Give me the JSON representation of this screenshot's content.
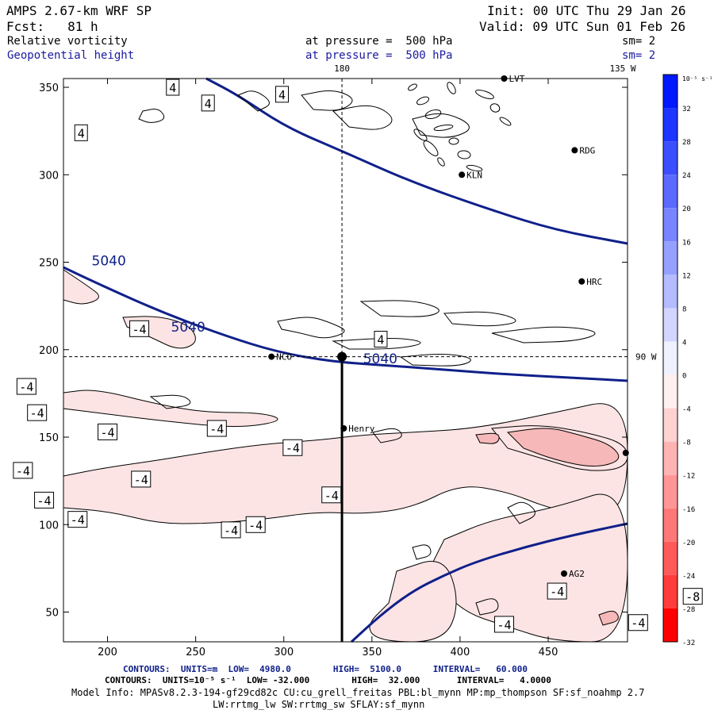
{
  "header": {
    "model": "AMPS 2.67-km WRF SP",
    "forecast": "Fcst:   81 h",
    "init": "Init: 00 UTC Thu 29 Jan 26",
    "valid": "Valid: 09 UTC Sun 01 Feb 26",
    "field1": "Relative vorticity",
    "field1_level": "at pressure =  500 hPa",
    "field1_sm": "sm= 2",
    "field2": "Geopotential height",
    "field2_level": "at pressure =  500 hPa",
    "field2_sm": "sm= 2"
  },
  "footer": {
    "contours1": "CONTOURS:  UNITS=m  LOW=  4980.0        HIGH=  5100.0      INTERVAL=   60.000",
    "contours2": "CONTOURS:  UNITS=10⁻⁵ s⁻¹  LOW= -32.000        HIGH=  32.000       INTERVAL=   4.0000",
    "model_info": "Model Info: MPASv8.2.3-194-gf29cd82c CU:cu_grell_freitas PBL:bl_mynn MP:mp_thompson SF:sf_noahmp 2.7",
    "model_info2": "LW:rrtmg_lw SW:rrtmg_sw SFLAY:sf_mynn"
  },
  "colors": {
    "height_contour": "#10208a",
    "vort_fill_neg": "#fde4e4",
    "vort_fill_neg2": "#f6b8b8",
    "frame": "#000000"
  },
  "chart_data": {
    "type": "contour map",
    "xlim": [
      175,
      495
    ],
    "ylim": [
      33,
      355
    ],
    "x_ticks": [
      200,
      250,
      300,
      350,
      400,
      450
    ],
    "y_ticks": [
      50,
      100,
      150,
      200,
      250,
      300,
      350
    ],
    "top_label_180": "180",
    "top_label_135w": "135 W",
    "right_label_90w": "90 W",
    "colorbar": {
      "unit_label": "10⁻⁵ s⁻¹",
      "levels": [
        32,
        28,
        24,
        20,
        16,
        12,
        8,
        4,
        0,
        -4,
        -8,
        -12,
        -16,
        -20,
        -24,
        -28,
        -32
      ]
    },
    "height_contours": [
      {
        "label": "5040",
        "label_pos": [
          191,
          251
        ]
      },
      {
        "label": "5040",
        "label_pos": [
          236,
          213
        ]
      },
      {
        "label": "5040",
        "label_pos": [
          345,
          195
        ]
      }
    ],
    "vorticity_labels": [
      {
        "text": "4",
        "x": 237,
        "y": 350
      },
      {
        "text": "4",
        "x": 257,
        "y": 341
      },
      {
        "text": "4",
        "x": 185,
        "y": 324
      },
      {
        "text": "4",
        "x": 299,
        "y": 346
      },
      {
        "text": "-4",
        "x": 218,
        "y": 212
      },
      {
        "text": "4",
        "x": 355,
        "y": 206
      },
      {
        "text": "-4",
        "x": 154,
        "y": 179
      },
      {
        "text": "-4",
        "x": 160,
        "y": 164
      },
      {
        "text": "-4",
        "x": 200,
        "y": 153
      },
      {
        "text": "-4",
        "x": 262,
        "y": 155
      },
      {
        "text": "-4",
        "x": 305,
        "y": 144
      },
      {
        "text": "-4",
        "x": 152,
        "y": 131
      },
      {
        "text": "-4",
        "x": 219,
        "y": 126
      },
      {
        "text": "-4",
        "x": 327,
        "y": 117
      },
      {
        "text": "-4",
        "x": 164,
        "y": 114
      },
      {
        "text": "-4",
        "x": 183,
        "y": 103
      },
      {
        "text": "-4",
        "x": 270,
        "y": 97
      },
      {
        "text": "-4",
        "x": 284,
        "y": 100
      },
      {
        "text": "-4",
        "x": 455,
        "y": 62
      },
      {
        "text": "-8",
        "x": 532,
        "y": 59
      },
      {
        "text": "-4",
        "x": 501,
        "y": 44
      },
      {
        "text": "-4",
        "x": 425,
        "y": 43
      }
    ],
    "stations": [
      {
        "name": "LVT",
        "x": 425,
        "y": 355
      },
      {
        "name": "RDG",
        "x": 465,
        "y": 314
      },
      {
        "name": "KLN",
        "x": 401,
        "y": 300
      },
      {
        "name": "HRC",
        "x": 469,
        "y": 239
      },
      {
        "name": "NCO",
        "x": 293,
        "y": 196
      },
      {
        "name": "Henry",
        "x": 334,
        "y": 155
      },
      {
        "name": "AG2",
        "x": 459,
        "y": 72
      },
      {
        "name": "",
        "x": 494,
        "y": 141
      }
    ],
    "cross_section_point": {
      "x": 333,
      "y": 196
    }
  }
}
